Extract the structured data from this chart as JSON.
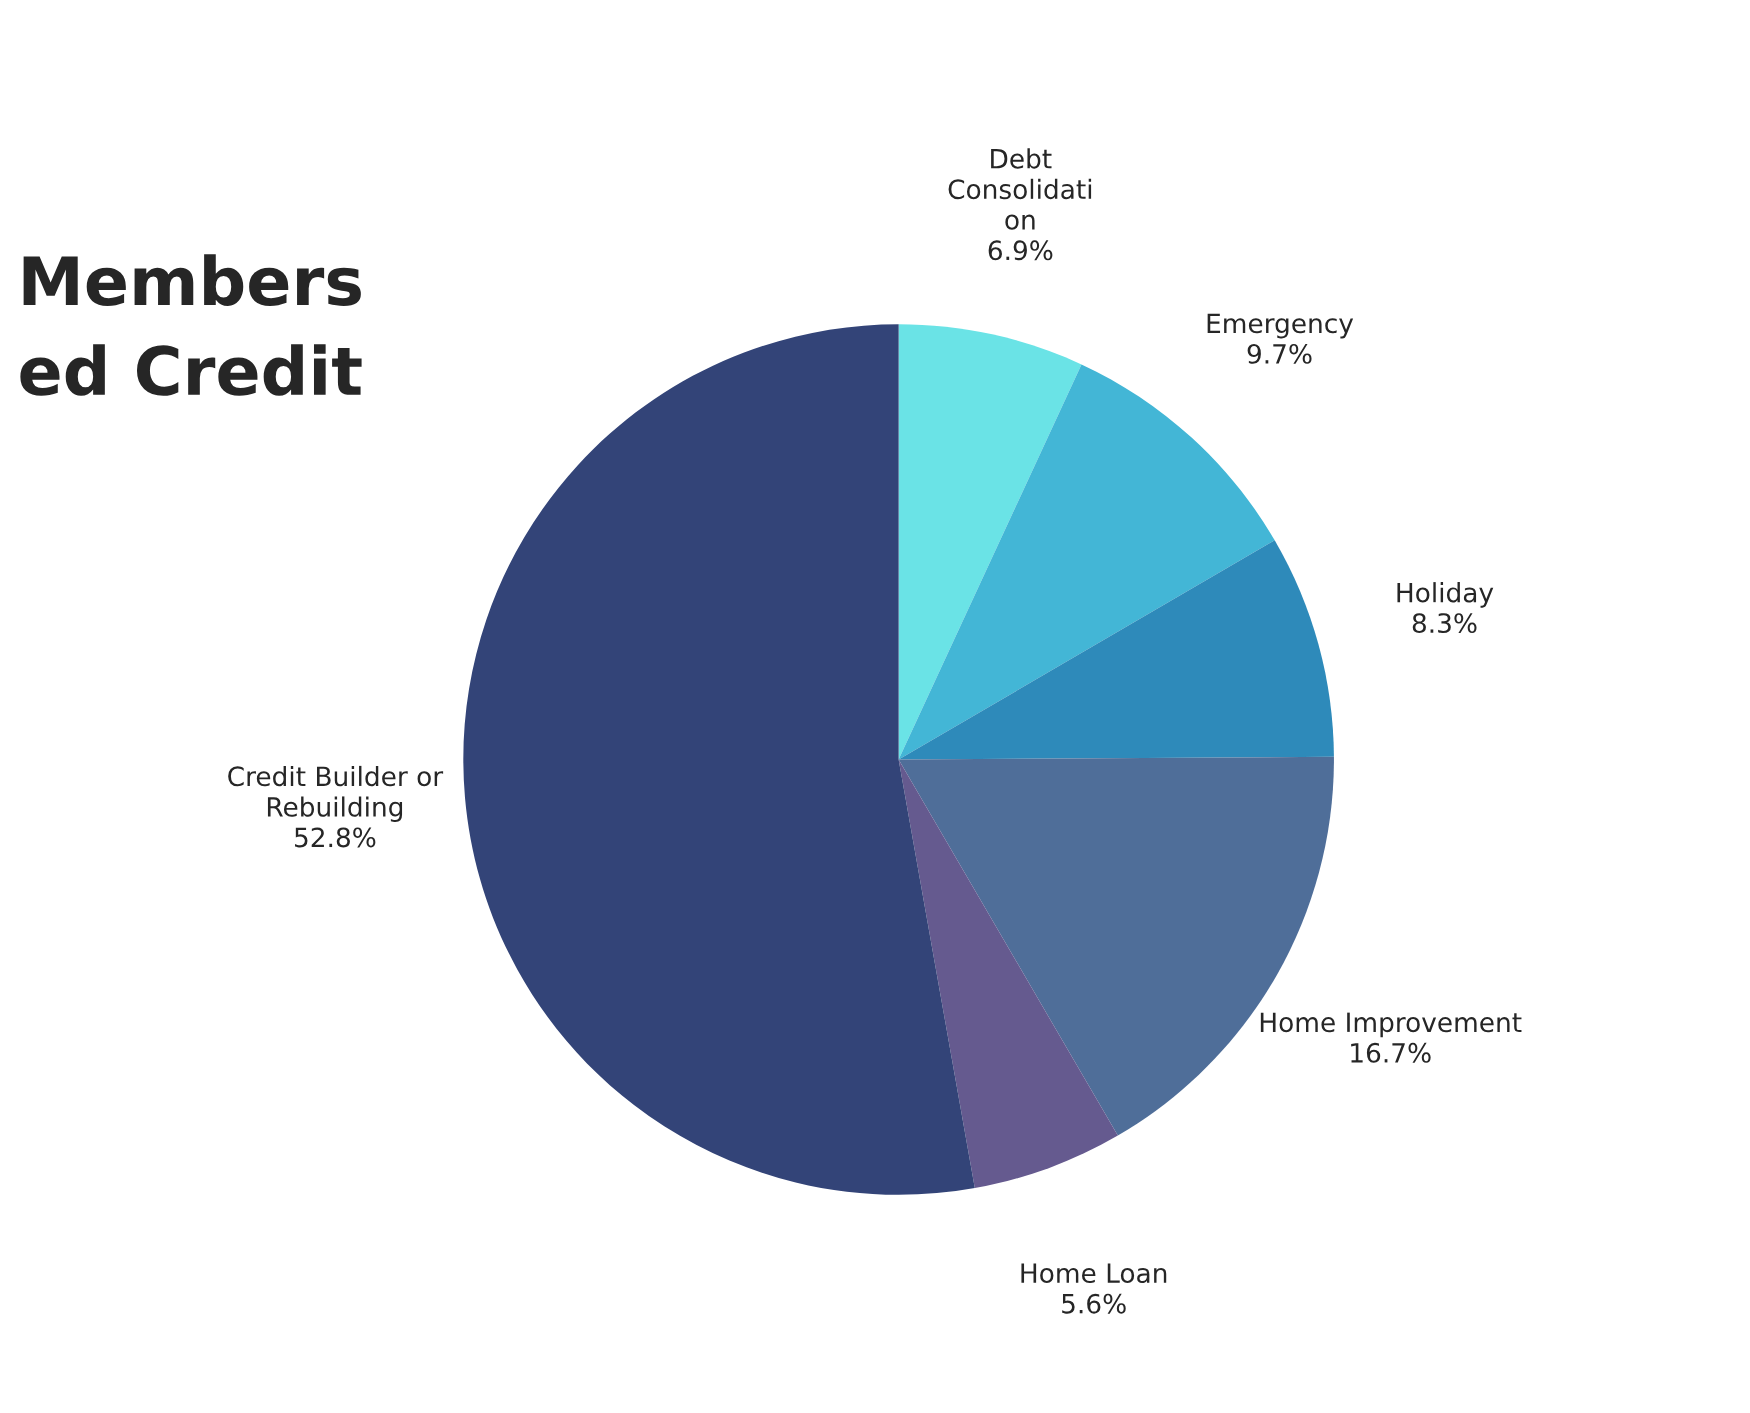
{
  "chart_data": {
    "type": "pie",
    "title": "Members\ned Credit",
    "categories": [
      "Debt\nConsolidati\non",
      "Emergency",
      "Holiday",
      "Home Improvement",
      "Home Loan",
      "Credit Builder or\nRebuilding"
    ],
    "values": [
      6.9,
      9.7,
      8.3,
      16.7,
      5.6,
      52.8
    ],
    "value_labels": [
      "6.9%",
      "9.7%",
      "8.3%",
      "16.7%",
      "5.6%",
      "52.8%"
    ],
    "colors": [
      "#6ae3e6",
      "#43b6d6",
      "#2e8aba",
      "#4f6e99",
      "#655a8f",
      "#334478"
    ],
    "legend": false
  }
}
